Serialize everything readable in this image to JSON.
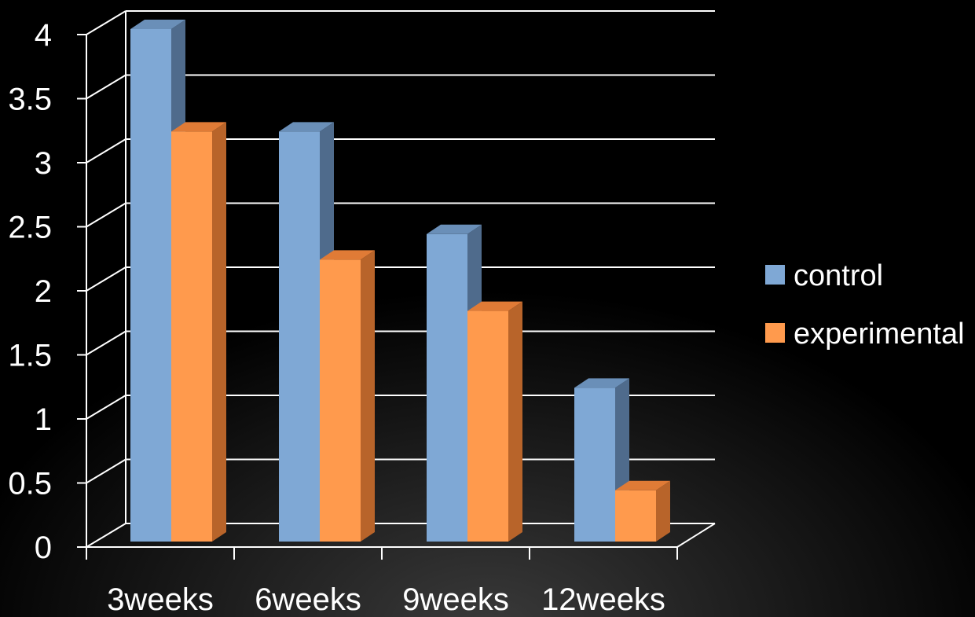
{
  "chart_data": {
    "type": "bar",
    "style": "3d-clustered-column",
    "categories": [
      "3weeks",
      "6weeks",
      "9weeks",
      "12weeks"
    ],
    "series": [
      {
        "name": "control",
        "values": [
          4,
          3.2,
          2.4,
          1.2
        ],
        "color": "#7fa8d5",
        "side_color": "#4f6b8c",
        "top_color": "#6a8fb8"
      },
      {
        "name": "experimental",
        "values": [
          3.2,
          2.2,
          1.8,
          0.4
        ],
        "color": "#ff9a4d",
        "side_color": "#b8642a",
        "top_color": "#e07b36"
      }
    ],
    "y_ticks": [
      "0",
      "0.5",
      "1",
      "1.5",
      "2",
      "2.5",
      "3",
      "3.5",
      "4"
    ],
    "ylim": [
      0,
      4
    ],
    "grid": true,
    "legend_position": "right",
    "background": "#000000",
    "gridline_color": "#ffffff"
  }
}
